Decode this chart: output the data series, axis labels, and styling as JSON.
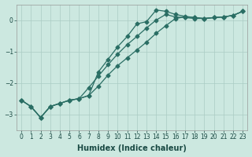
{
  "xlabel": "Humidex (Indice chaleur)",
  "background_color": "#cce8e0",
  "grid_color": "#aaccC4",
  "line_color": "#2a6e64",
  "xlim": [
    -0.5,
    23.5
  ],
  "ylim": [
    -3.5,
    0.5
  ],
  "yticks": [
    0,
    -1,
    -2,
    -3
  ],
  "xticks": [
    0,
    1,
    2,
    3,
    4,
    5,
    6,
    7,
    8,
    9,
    10,
    11,
    12,
    13,
    14,
    15,
    16,
    17,
    18,
    19,
    20,
    21,
    22,
    23
  ],
  "line1_x": [
    0,
    1,
    2,
    3,
    4,
    5,
    6,
    7,
    8,
    9,
    10,
    11,
    12,
    13,
    14,
    15,
    16,
    17,
    18,
    19,
    20,
    21,
    22,
    23
  ],
  "line1_y": [
    -2.55,
    -2.75,
    -3.1,
    -2.75,
    -2.65,
    -2.55,
    -2.5,
    -2.4,
    -1.65,
    -1.25,
    -0.85,
    -0.52,
    -0.12,
    -0.05,
    0.32,
    0.28,
    0.18,
    0.12,
    0.08,
    0.05,
    0.08,
    0.1,
    0.15,
    0.28
  ],
  "line2_x": [
    0,
    1,
    2,
    3,
    4,
    5,
    6,
    7,
    8,
    9,
    10,
    11,
    12,
    13,
    14,
    15,
    16,
    17,
    18,
    19,
    20,
    21,
    22,
    23
  ],
  "line2_y": [
    -2.55,
    -2.75,
    -3.1,
    -2.75,
    -2.65,
    -2.55,
    -2.5,
    -2.4,
    -2.1,
    -1.75,
    -1.45,
    -1.2,
    -0.95,
    -0.7,
    -0.42,
    -0.18,
    0.05,
    0.1,
    0.08,
    0.05,
    0.08,
    0.1,
    0.15,
    0.28
  ],
  "line3_x": [
    0,
    1,
    2,
    3,
    4,
    5,
    6,
    7,
    8,
    9,
    10,
    11,
    12,
    13,
    14,
    15,
    16,
    17,
    18,
    19,
    20,
    21,
    22,
    23
  ],
  "line3_y": [
    -2.55,
    -2.75,
    -3.1,
    -2.75,
    -2.65,
    -2.55,
    -2.5,
    -2.15,
    -1.78,
    -1.42,
    -1.08,
    -0.78,
    -0.52,
    -0.25,
    0.0,
    0.18,
    0.1,
    0.08,
    0.05,
    0.05,
    0.08,
    0.1,
    0.15,
    0.28
  ],
  "marker_size": 2.5,
  "line_width": 0.9,
  "xlabel_fontsize": 7,
  "tick_fontsize": 5.5
}
